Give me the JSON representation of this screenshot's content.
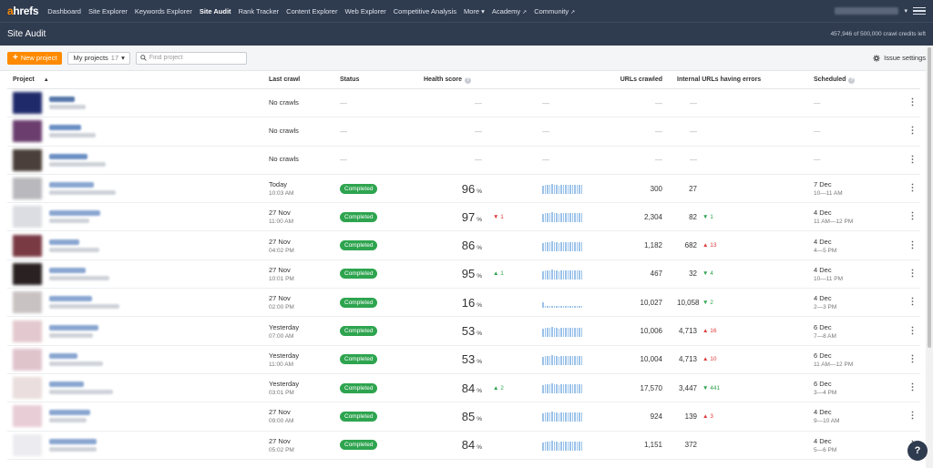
{
  "nav": {
    "logo_prefix": "a",
    "logo_rest": "hrefs",
    "items": [
      "Dashboard",
      "Site Explorer",
      "Keywords Explorer",
      "Site Audit",
      "Rank Tracker",
      "Content Explorer",
      "Web Explorer",
      "Competitive Analysis",
      "More"
    ],
    "active": "Site Audit",
    "academy": "Academy",
    "community": "Community"
  },
  "header": {
    "title": "Site Audit",
    "credits": "457,946 of 500,000 crawl credits left"
  },
  "toolbar": {
    "new_project": "New project",
    "my_projects": "My projects",
    "projects_count": "17",
    "search_placeholder": "Find project",
    "issue_settings": "Issue settings"
  },
  "columns": {
    "project": "Project",
    "last_crawl": "Last crawl",
    "status": "Status",
    "health": "Health score",
    "urls": "URLs crawled",
    "errors": "Internal URLs having errors",
    "scheduled": "Scheduled"
  },
  "colors": {
    "accent": "#ff8a00",
    "nav_bg": "#2f3b4f",
    "status_green": "#2ea44f",
    "up": "#2ea44f",
    "down": "#e03a3a"
  },
  "rows": [
    {
      "thumb": "#1f2a6b",
      "name_color": "#5577aa",
      "crawl_date": "No crawls",
      "crawl_time": "",
      "status": "",
      "health": "",
      "health_pct": "",
      "delta": "",
      "delta_dir": "",
      "urls": "—",
      "errors": "—",
      "err_delta": "",
      "err_dir": "",
      "sched_date": "—",
      "sched_time": ""
    },
    {
      "thumb": "#6a3d6e",
      "name_color": "#6b8fc4",
      "crawl_date": "No crawls",
      "crawl_time": "",
      "status": "",
      "health": "",
      "health_pct": "",
      "delta": "",
      "delta_dir": "",
      "urls": "—",
      "errors": "—",
      "err_delta": "",
      "err_dir": "",
      "sched_date": "—",
      "sched_time": ""
    },
    {
      "thumb": "#4a3f3a",
      "name_color": "#6b8fc4",
      "crawl_date": "No crawls",
      "crawl_time": "",
      "status": "",
      "health": "",
      "health_pct": "",
      "delta": "",
      "delta_dir": "",
      "urls": "—",
      "errors": "—",
      "err_delta": "",
      "err_dir": "",
      "sched_date": "—",
      "sched_time": ""
    },
    {
      "thumb": "#b9b9bd",
      "name_color": "#8aa6d1",
      "crawl_date": "Today",
      "crawl_time": "10:03 AM",
      "status": "Completed",
      "health": "96",
      "health_pct": "%",
      "delta": "",
      "delta_dir": "",
      "urls": "300",
      "errors": "27",
      "err_delta": "",
      "err_dir": "",
      "sched_date": "7 Dec",
      "sched_time": "10—11 AM"
    },
    {
      "thumb": "#dcdde2",
      "name_color": "#8aa6d1",
      "crawl_date": "27 Nov",
      "crawl_time": "11:00 AM",
      "status": "Completed",
      "health": "97",
      "health_pct": "%",
      "delta": "1",
      "delta_dir": "down",
      "urls": "2,304",
      "errors": "82",
      "err_delta": "1",
      "err_dir": "up",
      "sched_date": "4 Dec",
      "sched_time": "11 AM—12 PM"
    },
    {
      "thumb": "#7a3a44",
      "name_color": "#8aa6d1",
      "crawl_date": "27 Nov",
      "crawl_time": "04:02 PM",
      "status": "Completed",
      "health": "86",
      "health_pct": "%",
      "delta": "",
      "delta_dir": "",
      "urls": "1,182",
      "errors": "682",
      "err_delta": "13",
      "err_dir": "down",
      "sched_date": "4 Dec",
      "sched_time": "4—5 PM"
    },
    {
      "thumb": "#2a2222",
      "name_color": "#8aa6d1",
      "crawl_date": "27 Nov",
      "crawl_time": "10:01 PM",
      "status": "Completed",
      "health": "95",
      "health_pct": "%",
      "delta": "1",
      "delta_dir": "up",
      "urls": "467",
      "errors": "32",
      "err_delta": "4",
      "err_dir": "up",
      "sched_date": "4 Dec",
      "sched_time": "10—11 PM"
    },
    {
      "thumb": "#c9c2c2",
      "name_color": "#8aa6d1",
      "crawl_date": "27 Nov",
      "crawl_time": "02:00 PM",
      "status": "Completed",
      "health": "16",
      "health_pct": "%",
      "delta": "",
      "delta_dir": "",
      "urls": "10,027",
      "errors": "10,058",
      "err_delta": "2",
      "err_dir": "up",
      "sched_date": "4 Dec",
      "sched_time": "2—3 PM"
    },
    {
      "thumb": "#e3c9cf",
      "name_color": "#8aa6d1",
      "crawl_date": "Yesterday",
      "crawl_time": "07:00 AM",
      "status": "Completed",
      "health": "53",
      "health_pct": "%",
      "delta": "",
      "delta_dir": "",
      "urls": "10,006",
      "errors": "4,713",
      "err_delta": "16",
      "err_dir": "down",
      "sched_date": "6 Dec",
      "sched_time": "7—8 AM"
    },
    {
      "thumb": "#e0c4cc",
      "name_color": "#8aa6d1",
      "crawl_date": "Yesterday",
      "crawl_time": "11:00 AM",
      "status": "Completed",
      "health": "53",
      "health_pct": "%",
      "delta": "",
      "delta_dir": "",
      "urls": "10,004",
      "errors": "4,713",
      "err_delta": "10",
      "err_dir": "down",
      "sched_date": "6 Dec",
      "sched_time": "11 AM—12 PM"
    },
    {
      "thumb": "#eadede",
      "name_color": "#8aa6d1",
      "crawl_date": "Yesterday",
      "crawl_time": "03:01 PM",
      "status": "Completed",
      "health": "84",
      "health_pct": "%",
      "delta": "2",
      "delta_dir": "up",
      "urls": "17,570",
      "errors": "3,447",
      "err_delta": "441",
      "err_dir": "up",
      "sched_date": "6 Dec",
      "sched_time": "3—4 PM"
    },
    {
      "thumb": "#e8ccd6",
      "name_color": "#8aa6d1",
      "crawl_date": "27 Nov",
      "crawl_time": "09:00 AM",
      "status": "Completed",
      "health": "85",
      "health_pct": "%",
      "delta": "",
      "delta_dir": "",
      "urls": "924",
      "errors": "139",
      "err_delta": "3",
      "err_dir": "down",
      "sched_date": "4 Dec",
      "sched_time": "9—10 AM"
    },
    {
      "thumb": "#ececf0",
      "name_color": "#8aa6d1",
      "crawl_date": "27 Nov",
      "crawl_time": "05:02 PM",
      "status": "Completed",
      "health": "84",
      "health_pct": "%",
      "delta": "",
      "delta_dir": "",
      "urls": "1,151",
      "errors": "372",
      "err_delta": "",
      "err_dir": "",
      "sched_date": "4 Dec",
      "sched_time": "5—6 PM"
    }
  ],
  "help": "?"
}
